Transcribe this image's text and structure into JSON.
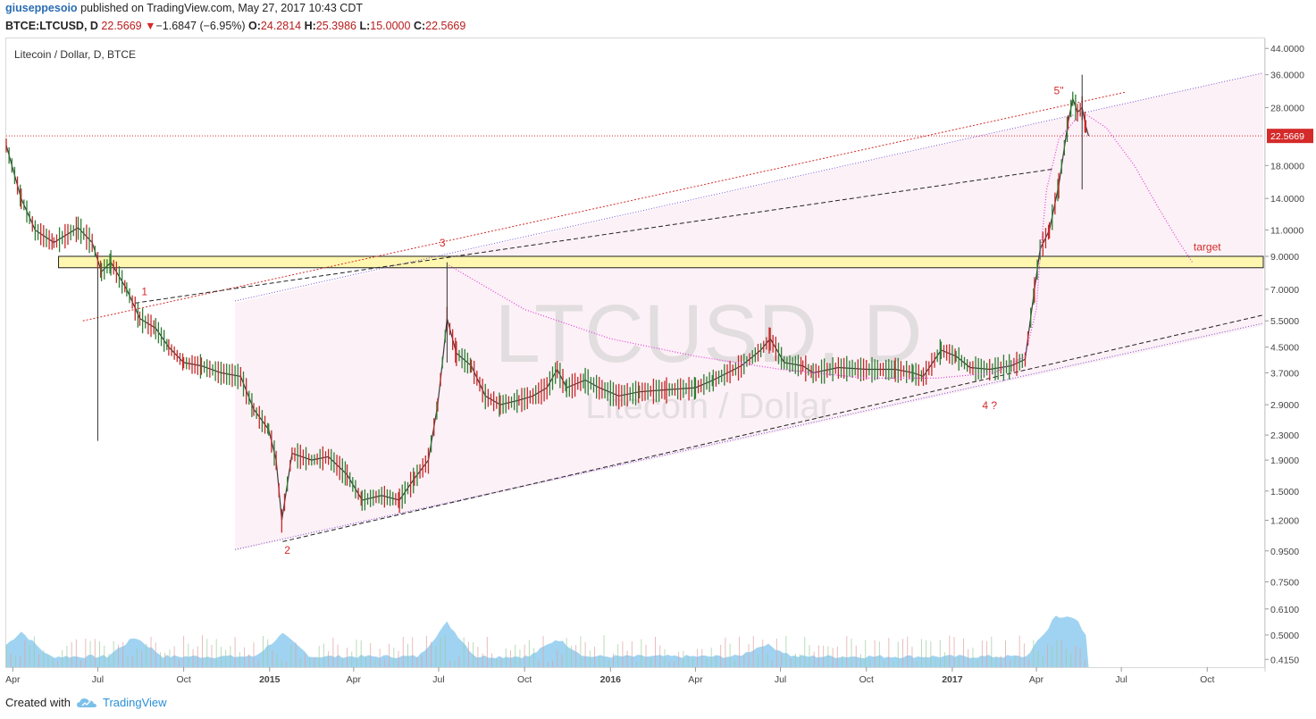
{
  "header": {
    "user": "giuseppesoio",
    "published": "published on TradingView.com, May 27, 2017 10:43 CDT",
    "symbol": "BTCE:LTCUSD, D",
    "price": "22.5669",
    "arrow": "▼",
    "change": "−1.6847 (−6.95%)",
    "o_label": "O:",
    "o_value": "24.2814",
    "h_label": "H:",
    "h_value": "25.3986",
    "l_label": "L:",
    "l_value": "15.0000",
    "c_label": "C:",
    "c_value": "22.5669"
  },
  "footer": {
    "created": "Created with",
    "brand": "TradingView"
  },
  "colors": {
    "up": "#2e7d32",
    "down": "#c62828",
    "accent": "#d42a2a",
    "vol_area": "#7fc4ec",
    "channel_fill": "#fbeef4",
    "zone": "#fff7b0"
  },
  "chart_data": {
    "type": "candlestick",
    "title": "Litecoin / Dollar, D, BTCE",
    "watermark": "LTCUSD, D",
    "watermark_sub": "Litecoin / Dollar",
    "y_scale": "log",
    "y_ticks": [
      "44.0000",
      "36.0000",
      "28.0000",
      "22.5669",
      "18.0000",
      "14.0000",
      "11.0000",
      "9.0000",
      "7.0000",
      "5.5000",
      "4.5000",
      "3.7000",
      "2.9000",
      "2.3000",
      "1.9000",
      "1.5000",
      "1.2000",
      "0.9500",
      "0.7500",
      "0.6100",
      "0.5000",
      "0.4150"
    ],
    "last_price": "22.5669",
    "x_ticks": [
      "Apr",
      "Jul",
      "Oct",
      "2015",
      "Apr",
      "Jul",
      "Oct",
      "2016",
      "Apr",
      "Jul",
      "Oct",
      "2017",
      "Apr",
      "Jul",
      "Oct"
    ],
    "x_range": [
      "2014-03-25",
      "2017-11-30"
    ],
    "annotations": [
      "1",
      "2",
      "3",
      "4 ?",
      "5''",
      "target"
    ],
    "price_path": [
      [
        "2014-03-25",
        21
      ],
      [
        "2014-04-10",
        14
      ],
      [
        "2014-04-25",
        11
      ],
      [
        "2014-05-15",
        10
      ],
      [
        "2014-06-10",
        11.2
      ],
      [
        "2014-06-25",
        10
      ],
      [
        "2014-07-05",
        8
      ],
      [
        "2014-07-15",
        8.6
      ],
      [
        "2014-08-01",
        7
      ],
      [
        "2014-08-15",
        5.6
      ],
      [
        "2014-09-01",
        5.2
      ],
      [
        "2014-09-15",
        4.5
      ],
      [
        "2014-10-01",
        4.0
      ],
      [
        "2014-10-20",
        3.9
      ],
      [
        "2014-11-10",
        3.7
      ],
      [
        "2014-12-01",
        3.6
      ],
      [
        "2014-12-15",
        2.8
      ],
      [
        "2014-12-31",
        2.4
      ],
      [
        "2015-01-08",
        1.9
      ],
      [
        "2015-01-14",
        1.2
      ],
      [
        "2015-01-25",
        2.0
      ],
      [
        "2015-02-15",
        1.9
      ],
      [
        "2015-03-05",
        1.95
      ],
      [
        "2015-03-25",
        1.7
      ],
      [
        "2015-04-10",
        1.4
      ],
      [
        "2015-05-01",
        1.45
      ],
      [
        "2015-05-20",
        1.4
      ],
      [
        "2015-06-05",
        1.65
      ],
      [
        "2015-06-20",
        1.9
      ],
      [
        "2015-06-30",
        2.9
      ],
      [
        "2015-07-05",
        4.0
      ],
      [
        "2015-07-10",
        5.6
      ],
      [
        "2015-07-20",
        4.3
      ],
      [
        "2015-08-05",
        3.9
      ],
      [
        "2015-08-20",
        3.1
      ],
      [
        "2015-09-05",
        2.9
      ],
      [
        "2015-09-25",
        3.0
      ],
      [
        "2015-10-10",
        3.1
      ],
      [
        "2015-10-25",
        3.3
      ],
      [
        "2015-11-05",
        3.8
      ],
      [
        "2015-11-15",
        3.3
      ],
      [
        "2015-12-05",
        3.5
      ],
      [
        "2015-12-20",
        3.3
      ],
      [
        "2016-01-10",
        3.1
      ],
      [
        "2016-02-01",
        3.2
      ],
      [
        "2016-03-01",
        3.25
      ],
      [
        "2016-04-01",
        3.3
      ],
      [
        "2016-04-20",
        3.5
      ],
      [
        "2016-05-20",
        3.9
      ],
      [
        "2016-06-10",
        4.4
      ],
      [
        "2016-06-20",
        4.8
      ],
      [
        "2016-07-05",
        4.0
      ],
      [
        "2016-07-25",
        3.9
      ],
      [
        "2016-08-05",
        3.7
      ],
      [
        "2016-09-01",
        3.85
      ],
      [
        "2016-10-01",
        3.8
      ],
      [
        "2016-11-01",
        3.8
      ],
      [
        "2016-11-20",
        3.7
      ],
      [
        "2016-12-01",
        3.6
      ],
      [
        "2016-12-20",
        4.4
      ],
      [
        "2017-01-05",
        4.2
      ],
      [
        "2017-01-20",
        3.85
      ],
      [
        "2017-02-10",
        3.8
      ],
      [
        "2017-03-05",
        3.9
      ],
      [
        "2017-03-20",
        4.1
      ],
      [
        "2017-03-30",
        7.0
      ],
      [
        "2017-04-05",
        9.5
      ],
      [
        "2017-04-15",
        11.0
      ],
      [
        "2017-04-25",
        15.5
      ],
      [
        "2017-05-05",
        25
      ],
      [
        "2017-05-10",
        30
      ],
      [
        "2017-05-15",
        27
      ],
      [
        "2017-05-20",
        28
      ],
      [
        "2017-05-24",
        24.28
      ],
      [
        "2017-05-27",
        22.5669
      ]
    ]
  }
}
